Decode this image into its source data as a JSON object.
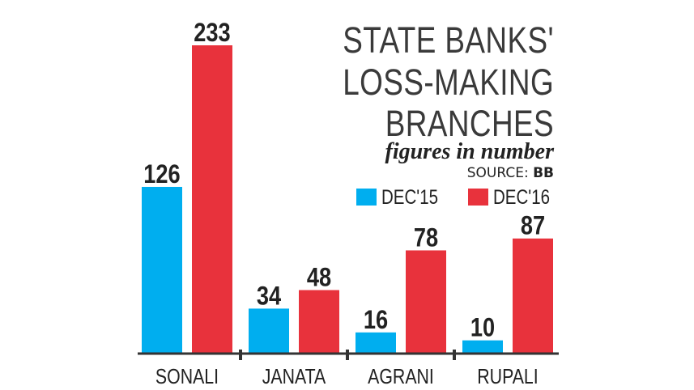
{
  "chart_data": {
    "type": "bar",
    "title": "STATE BANKS' LOSS-MAKING BRANCHES",
    "title_lines": [
      "STATE BANKS'",
      "LOSS-MAKING",
      "BRANCHES"
    ],
    "subtitle": "figures in number",
    "source_label": "SOURCE:",
    "source_value": "BB",
    "categories": [
      "SONALI",
      "JANATA",
      "AGRANI",
      "RUPALI"
    ],
    "series": [
      {
        "name": "DEC'15",
        "values": [
          126,
          34,
          16,
          10
        ],
        "color": "#00aeef"
      },
      {
        "name": "DEC'16",
        "values": [
          233,
          48,
          78,
          87
        ],
        "color": "#e8323c"
      }
    ],
    "xlabel": "",
    "ylabel": "",
    "ylim": [
      0,
      233
    ],
    "grid": false,
    "legend": "right, below title"
  },
  "colors": {
    "axis": "#333333",
    "label": "#222222"
  }
}
